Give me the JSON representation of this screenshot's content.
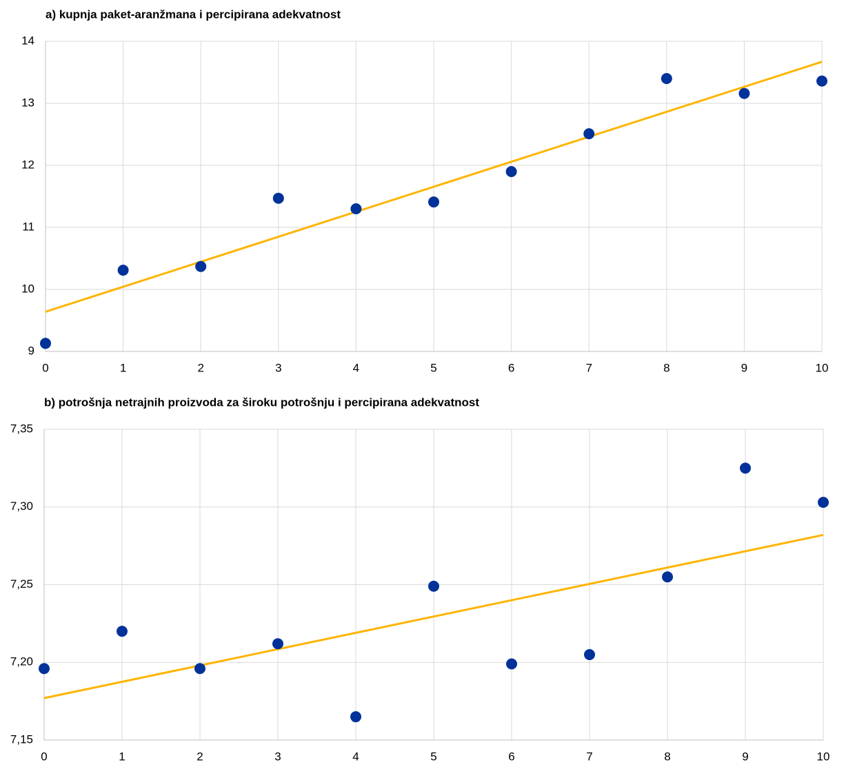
{
  "chart_data": [
    {
      "type": "scatter",
      "title": "a) kupnja paket-aranžmana i percipirana adekvatnost",
      "x": [
        0,
        1,
        2,
        3,
        4,
        5,
        6,
        7,
        8,
        9,
        10
      ],
      "series": [
        {
          "color": "#003299",
          "values": [
            9.13,
            10.31,
            10.37,
            11.47,
            11.3,
            11.41,
            11.9,
            12.51,
            13.4,
            13.16,
            13.36
          ]
        }
      ],
      "trendline": {
        "color": "#ffb400",
        "x": [
          0,
          10
        ],
        "values": [
          9.64,
          13.67
        ]
      },
      "xlim": [
        0,
        10
      ],
      "xticks": [
        0,
        1,
        2,
        3,
        4,
        5,
        6,
        7,
        8,
        9,
        10
      ],
      "ylim": [
        9,
        14
      ],
      "yticks": [
        9,
        10,
        11,
        12,
        13,
        14
      ],
      "grid": true
    },
    {
      "type": "scatter",
      "title": "b) potrošnja netrajnih proizvoda za široku potrošnju i percipirana adekvatnost",
      "x": [
        0,
        1,
        2,
        3,
        4,
        5,
        6,
        7,
        8,
        9,
        10
      ],
      "series": [
        {
          "color": "#003299",
          "values": [
            7.196,
            7.22,
            7.196,
            7.212,
            7.165,
            7.249,
            7.199,
            7.205,
            7.255,
            7.325,
            7.303
          ]
        }
      ],
      "trendline": {
        "color": "#ffb400",
        "x": [
          0,
          10
        ],
        "values": [
          7.177,
          7.282
        ]
      },
      "xlim": [
        0,
        10
      ],
      "xticks": [
        0,
        1,
        2,
        3,
        4,
        5,
        6,
        7,
        8,
        9,
        10
      ],
      "ylim": [
        7.15,
        7.35
      ],
      "yticks": [
        {
          "value": 7.15,
          "label": "7,15"
        },
        {
          "value": 7.2,
          "label": "7,20"
        },
        {
          "value": 7.25,
          "label": "7,25"
        },
        {
          "value": 7.3,
          "label": "7,30"
        },
        {
          "value": 7.35,
          "label": "7,35"
        }
      ],
      "grid": true
    }
  ]
}
